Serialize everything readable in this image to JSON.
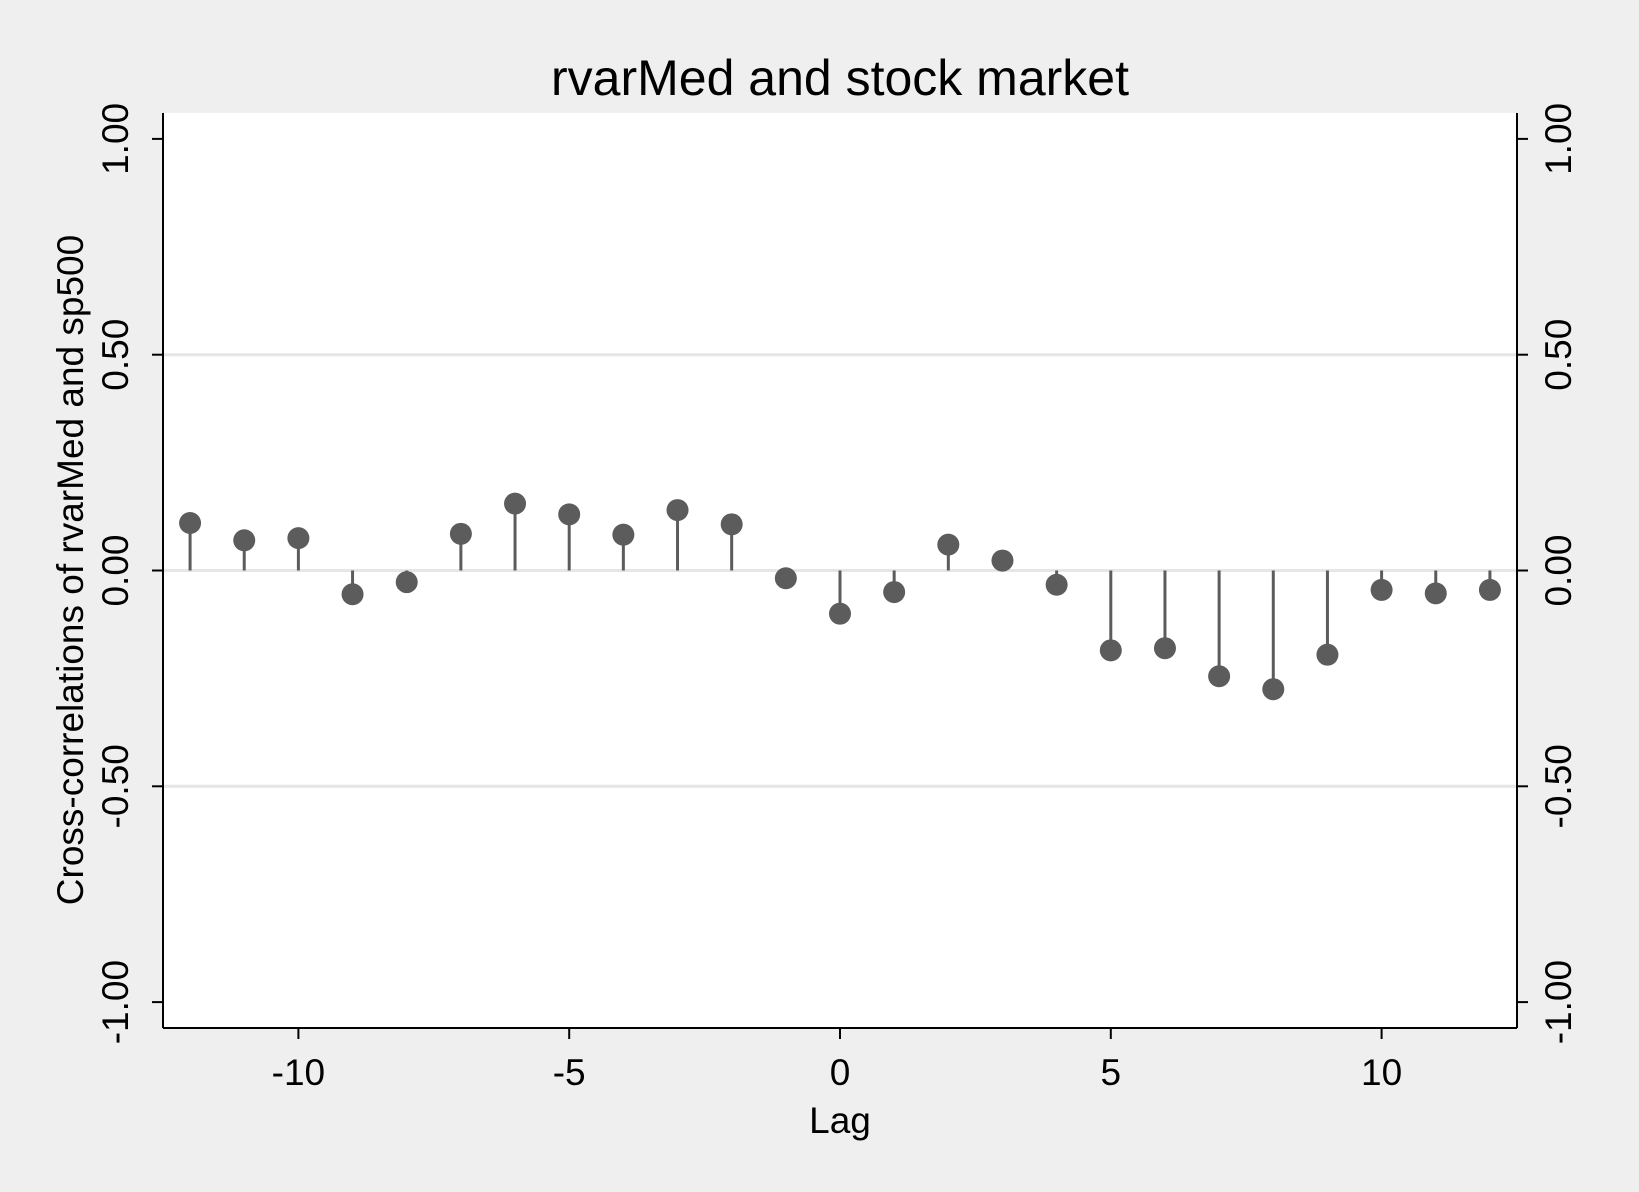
{
  "chart_data": {
    "type": "scatter",
    "subtype": "cross-correlogram (stem plot)",
    "title": "rvarMed and stock market",
    "xlabel": "Lag",
    "ylabel": "Cross-correlations of rvarMed and sp500",
    "xlim": [
      -12.5,
      12.5
    ],
    "ylim": [
      -1.06,
      1.06
    ],
    "x_ticks": [
      -10,
      -5,
      0,
      5,
      10
    ],
    "x_tick_labels": [
      "-10",
      "-5",
      "0",
      "5",
      "10"
    ],
    "y_ticks": [
      1.0,
      0.5,
      0.0,
      -0.5,
      -1.0
    ],
    "y_tick_labels": [
      "1.00",
      "0.50",
      "0.00",
      "-0.50",
      "-1.00"
    ],
    "right_axis_mirror": true,
    "gridlines_y": [
      0.5,
      0.0,
      -0.5
    ],
    "grid": true,
    "legend": "none",
    "colors": {
      "marker": "#5c5c5c",
      "grid": "#e6e6e6",
      "plot_background": "#ffffff",
      "outer_background": "#efefef"
    },
    "series": [
      {
        "x": [
          -12,
          -11,
          -10,
          -9,
          -8,
          -7,
          -6,
          -5,
          -4,
          -3,
          -2,
          -1,
          0,
          1,
          2,
          3,
          4,
          5,
          6,
          7,
          8,
          9,
          10,
          11,
          12
        ],
        "values": [
          0.11,
          0.07,
          0.075,
          -0.055,
          -0.027,
          0.085,
          0.155,
          0.13,
          0.083,
          0.14,
          0.107,
          -0.018,
          -0.1,
          -0.05,
          0.06,
          0.023,
          -0.033,
          -0.185,
          -0.18,
          -0.245,
          -0.275,
          -0.195,
          -0.045,
          -0.053,
          -0.045
        ]
      }
    ]
  }
}
